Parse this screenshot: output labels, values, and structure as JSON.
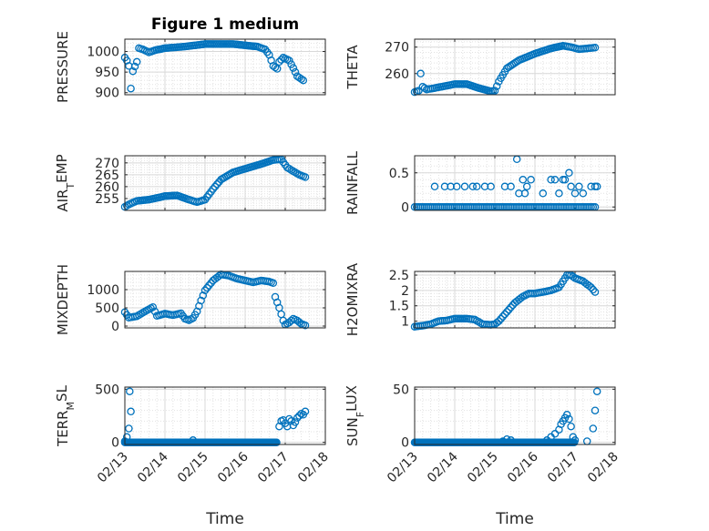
{
  "colors": {
    "marker": "#0072BD",
    "axis": "#262626",
    "grid": "#d9d9d9"
  },
  "chart_data": [
    {
      "type": "scatter",
      "title": "Figure 1 medium",
      "ylabel": "PRESSURE",
      "xlabel": "",
      "xlim": [
        0,
        5
      ],
      "ylim": [
        895,
        1030
      ],
      "yticks": [
        900,
        950,
        1000
      ],
      "ytick_labels": [
        "900",
        "950",
        "1000"
      ],
      "xtick_labels": [],
      "grid": true,
      "segments": [
        [
          0.0,
          985
        ],
        [
          0.05,
          978
        ],
        [
          0.1,
          965
        ],
        [
          0.15,
          910
        ],
        [
          0.2,
          952
        ],
        [
          0.3,
          975
        ],
        [
          0.35,
          1008
        ],
        [
          0.45,
          1005
        ],
        [
          0.6,
          998
        ],
        [
          0.75,
          1003
        ],
        [
          1.0,
          1008
        ],
        [
          1.5,
          1012
        ],
        [
          2.0,
          1018
        ],
        [
          2.3,
          1018
        ],
        [
          2.7,
          1018
        ],
        [
          3.0,
          1015
        ],
        [
          3.3,
          1012
        ],
        [
          3.5,
          1005
        ],
        [
          3.6,
          992
        ],
        [
          3.7,
          965
        ],
        [
          3.8,
          958
        ],
        [
          3.85,
          975
        ],
        [
          3.95,
          985
        ],
        [
          4.1,
          978
        ],
        [
          4.2,
          960
        ],
        [
          4.3,
          940
        ],
        [
          4.45,
          930
        ]
      ]
    },
    {
      "type": "scatter",
      "title": "",
      "ylabel": "THETA",
      "xlabel": "",
      "xlim": [
        0,
        5
      ],
      "ylim": [
        252,
        273
      ],
      "yticks": [
        260,
        270
      ],
      "ytick_labels": [
        "260",
        "270"
      ],
      "xtick_labels": [],
      "grid": true,
      "segments": [
        [
          0.0,
          253
        ],
        [
          0.1,
          253.5
        ],
        [
          0.15,
          260
        ],
        [
          0.2,
          255
        ],
        [
          0.3,
          254
        ],
        [
          0.5,
          254.5
        ],
        [
          1.0,
          256
        ],
        [
          1.3,
          256
        ],
        [
          1.6,
          254.5
        ],
        [
          1.9,
          253.3
        ],
        [
          2.0,
          253.5
        ],
        [
          2.1,
          257
        ],
        [
          2.3,
          262
        ],
        [
          2.6,
          265
        ],
        [
          3.0,
          267.5
        ],
        [
          3.4,
          269.5
        ],
        [
          3.7,
          270.5
        ],
        [
          3.9,
          270
        ],
        [
          4.1,
          269.2
        ],
        [
          4.3,
          269.5
        ],
        [
          4.5,
          269.8
        ]
      ]
    },
    {
      "type": "scatter",
      "title": "",
      "ylabel": "AIR_TEMP",
      "ylabel_main": "AIR",
      "ylabel_sub": "T",
      "ylabel_tail": "EMP",
      "xlabel": "",
      "xlim": [
        0,
        5
      ],
      "ylim": [
        250,
        273
      ],
      "yticks": [
        255,
        260,
        265,
        270
      ],
      "ytick_labels": [
        "255",
        "260",
        "265",
        "270"
      ],
      "xtick_labels": [],
      "grid": true,
      "segments": [
        [
          0.0,
          251.5
        ],
        [
          0.1,
          252.5
        ],
        [
          0.3,
          254
        ],
        [
          0.6,
          254.5
        ],
        [
          1.0,
          256
        ],
        [
          1.3,
          256.3
        ],
        [
          1.6,
          254.5
        ],
        [
          1.8,
          253.5
        ],
        [
          2.0,
          254.5
        ],
        [
          2.2,
          259
        ],
        [
          2.4,
          263
        ],
        [
          2.7,
          266
        ],
        [
          3.1,
          268
        ],
        [
          3.4,
          269.5
        ],
        [
          3.7,
          271.2
        ],
        [
          3.9,
          271.5
        ],
        [
          4.05,
          268
        ],
        [
          4.2,
          266.5
        ],
        [
          4.35,
          265
        ],
        [
          4.5,
          264
        ]
      ]
    },
    {
      "type": "scatter",
      "title": "",
      "ylabel": "RAINFALL",
      "xlabel": "",
      "xlim": [
        0,
        5
      ],
      "ylim": [
        -0.05,
        0.75
      ],
      "yticks": [
        0,
        0.5
      ],
      "ytick_labels": [
        "0",
        "0.5"
      ],
      "xtick_labels": [],
      "grid": true,
      "baseline": {
        "y": 0,
        "x0": 0.0,
        "x1": 4.5,
        "step": 0.05
      },
      "points": [
        [
          0.5,
          0.3
        ],
        [
          0.75,
          0.3
        ],
        [
          0.9,
          0.3
        ],
        [
          1.05,
          0.3
        ],
        [
          1.25,
          0.3
        ],
        [
          1.45,
          0.3
        ],
        [
          1.55,
          0.3
        ],
        [
          1.75,
          0.3
        ],
        [
          1.9,
          0.3
        ],
        [
          2.25,
          0.3
        ],
        [
          2.4,
          0.3
        ],
        [
          2.55,
          0.7
        ],
        [
          2.6,
          0.2
        ],
        [
          2.7,
          0.4
        ],
        [
          2.75,
          0.2
        ],
        [
          2.8,
          0.3
        ],
        [
          2.9,
          0.4
        ],
        [
          3.2,
          0.2
        ],
        [
          3.4,
          0.4
        ],
        [
          3.5,
          0.4
        ],
        [
          3.6,
          0.2
        ],
        [
          3.7,
          0.4
        ],
        [
          3.75,
          0.4
        ],
        [
          3.85,
          0.5
        ],
        [
          3.9,
          0.3
        ],
        [
          4.0,
          0.2
        ],
        [
          4.1,
          0.3
        ],
        [
          4.2,
          0.2
        ],
        [
          4.4,
          0.3
        ],
        [
          4.5,
          0.3
        ],
        [
          4.55,
          0.3
        ]
      ]
    },
    {
      "type": "scatter",
      "title": "",
      "ylabel": "MIXDEPTH",
      "xlabel": "",
      "xlim": [
        0,
        5
      ],
      "ylim": [
        -50,
        1500
      ],
      "yticks": [
        0,
        500,
        1000
      ],
      "ytick_labels": [
        "0",
        "500",
        "1000"
      ],
      "xtick_labels": [],
      "grid": true,
      "segments": [
        [
          0.0,
          380
        ],
        [
          0.1,
          230
        ],
        [
          0.3,
          270
        ],
        [
          0.5,
          400
        ],
        [
          0.7,
          520
        ],
        [
          0.8,
          280
        ],
        [
          1.0,
          340
        ],
        [
          1.2,
          300
        ],
        [
          1.4,
          350
        ],
        [
          1.5,
          200
        ],
        [
          1.6,
          160
        ],
        [
          1.7,
          220
        ],
        [
          1.8,
          400
        ],
        [
          1.9,
          700
        ],
        [
          2.0,
          980
        ],
        [
          2.2,
          1250
        ],
        [
          2.4,
          1420
        ],
        [
          2.6,
          1380
        ],
        [
          2.8,
          1300
        ],
        [
          3.0,
          1250
        ],
        [
          3.2,
          1200
        ],
        [
          3.4,
          1250
        ],
        [
          3.6,
          1220
        ],
        [
          3.7,
          1180
        ],
        [
          3.75,
          800
        ],
        [
          3.85,
          500
        ],
        [
          3.95,
          150
        ],
        [
          4.0,
          40
        ],
        [
          4.1,
          100
        ],
        [
          4.2,
          200
        ],
        [
          4.3,
          150
        ],
        [
          4.4,
          60
        ],
        [
          4.5,
          20
        ]
      ]
    },
    {
      "type": "scatter",
      "title": "",
      "ylabel": "H2OMIXRA",
      "xlabel": "",
      "xlim": [
        0,
        5
      ],
      "ylim": [
        0.78,
        2.62
      ],
      "yticks": [
        1,
        1.5,
        2,
        2.5
      ],
      "ytick_labels": [
        "1",
        "1.5",
        "2",
        "2.5"
      ],
      "xtick_labels": [],
      "grid": true,
      "segments": [
        [
          0.0,
          0.82
        ],
        [
          0.2,
          0.85
        ],
        [
          0.4,
          0.9
        ],
        [
          0.6,
          1.0
        ],
        [
          0.8,
          1.02
        ],
        [
          1.0,
          1.08
        ],
        [
          1.3,
          1.08
        ],
        [
          1.5,
          1.05
        ],
        [
          1.7,
          0.9
        ],
        [
          1.9,
          0.88
        ],
        [
          2.0,
          0.9
        ],
        [
          2.1,
          1.0
        ],
        [
          2.3,
          1.3
        ],
        [
          2.5,
          1.6
        ],
        [
          2.7,
          1.8
        ],
        [
          2.85,
          1.9
        ],
        [
          3.0,
          1.9
        ],
        [
          3.2,
          1.95
        ],
        [
          3.4,
          2.0
        ],
        [
          3.6,
          2.1
        ],
        [
          3.8,
          2.5
        ],
        [
          3.9,
          2.5
        ],
        [
          4.0,
          2.4
        ],
        [
          4.2,
          2.3
        ],
        [
          4.4,
          2.1
        ],
        [
          4.5,
          1.95
        ]
      ]
    },
    {
      "type": "scatter",
      "title": "",
      "ylabel": "TERR_MSL",
      "ylabel_main": "TERR",
      "ylabel_sub": "M",
      "ylabel_tail": "SL",
      "xlabel": "Time",
      "xlim": [
        0,
        5
      ],
      "ylim": [
        -20,
        520
      ],
      "yticks": [
        0,
        500
      ],
      "ytick_labels": [
        "0",
        "500"
      ],
      "xtick_labels": [
        "02/13",
        "02/14",
        "02/15",
        "02/16",
        "02/17",
        "02/18"
      ],
      "grid": true,
      "baseline": {
        "y": 0,
        "x0": 0.0,
        "x1": 3.8,
        "step": 0.022
      },
      "points": [
        [
          0.0,
          10
        ],
        [
          0.05,
          50
        ],
        [
          0.1,
          130
        ],
        [
          0.12,
          480
        ],
        [
          0.15,
          290
        ],
        [
          1.7,
          20
        ],
        [
          3.85,
          150
        ],
        [
          3.9,
          200
        ],
        [
          3.95,
          210
        ],
        [
          4.0,
          180
        ],
        [
          4.05,
          150
        ],
        [
          4.1,
          220
        ],
        [
          4.15,
          200
        ],
        [
          4.2,
          160
        ],
        [
          4.25,
          190
        ],
        [
          4.3,
          230
        ],
        [
          4.35,
          250
        ],
        [
          4.4,
          270
        ],
        [
          4.45,
          260
        ],
        [
          4.5,
          290
        ]
      ]
    },
    {
      "type": "scatter",
      "title": "",
      "ylabel": "SUN_FLUX",
      "ylabel_main": "SUN",
      "ylabel_sub": "F",
      "ylabel_tail": "LUX",
      "xlabel": "Time",
      "xlim": [
        0,
        5
      ],
      "ylim": [
        -2,
        52
      ],
      "yticks": [
        0,
        50
      ],
      "ytick_labels": [
        "0",
        "50"
      ],
      "xtick_labels": [
        "02/13",
        "02/14",
        "02/15",
        "02/16",
        "02/17",
        "02/18"
      ],
      "grid": true,
      "baseline": {
        "y": 0,
        "x0": 0.0,
        "x1": 4.0,
        "step": 0.022
      },
      "points": [
        [
          2.2,
          1
        ],
        [
          2.3,
          3
        ],
        [
          2.4,
          2
        ],
        [
          3.3,
          2
        ],
        [
          3.4,
          5
        ],
        [
          3.5,
          8
        ],
        [
          3.6,
          12
        ],
        [
          3.65,
          17
        ],
        [
          3.7,
          20
        ],
        [
          3.75,
          23
        ],
        [
          3.8,
          26
        ],
        [
          3.85,
          22
        ],
        [
          3.9,
          15
        ],
        [
          3.95,
          5
        ],
        [
          4.0,
          2
        ],
        [
          4.3,
          1
        ],
        [
          4.45,
          13
        ],
        [
          4.5,
          30
        ],
        [
          4.55,
          48
        ]
      ]
    }
  ]
}
